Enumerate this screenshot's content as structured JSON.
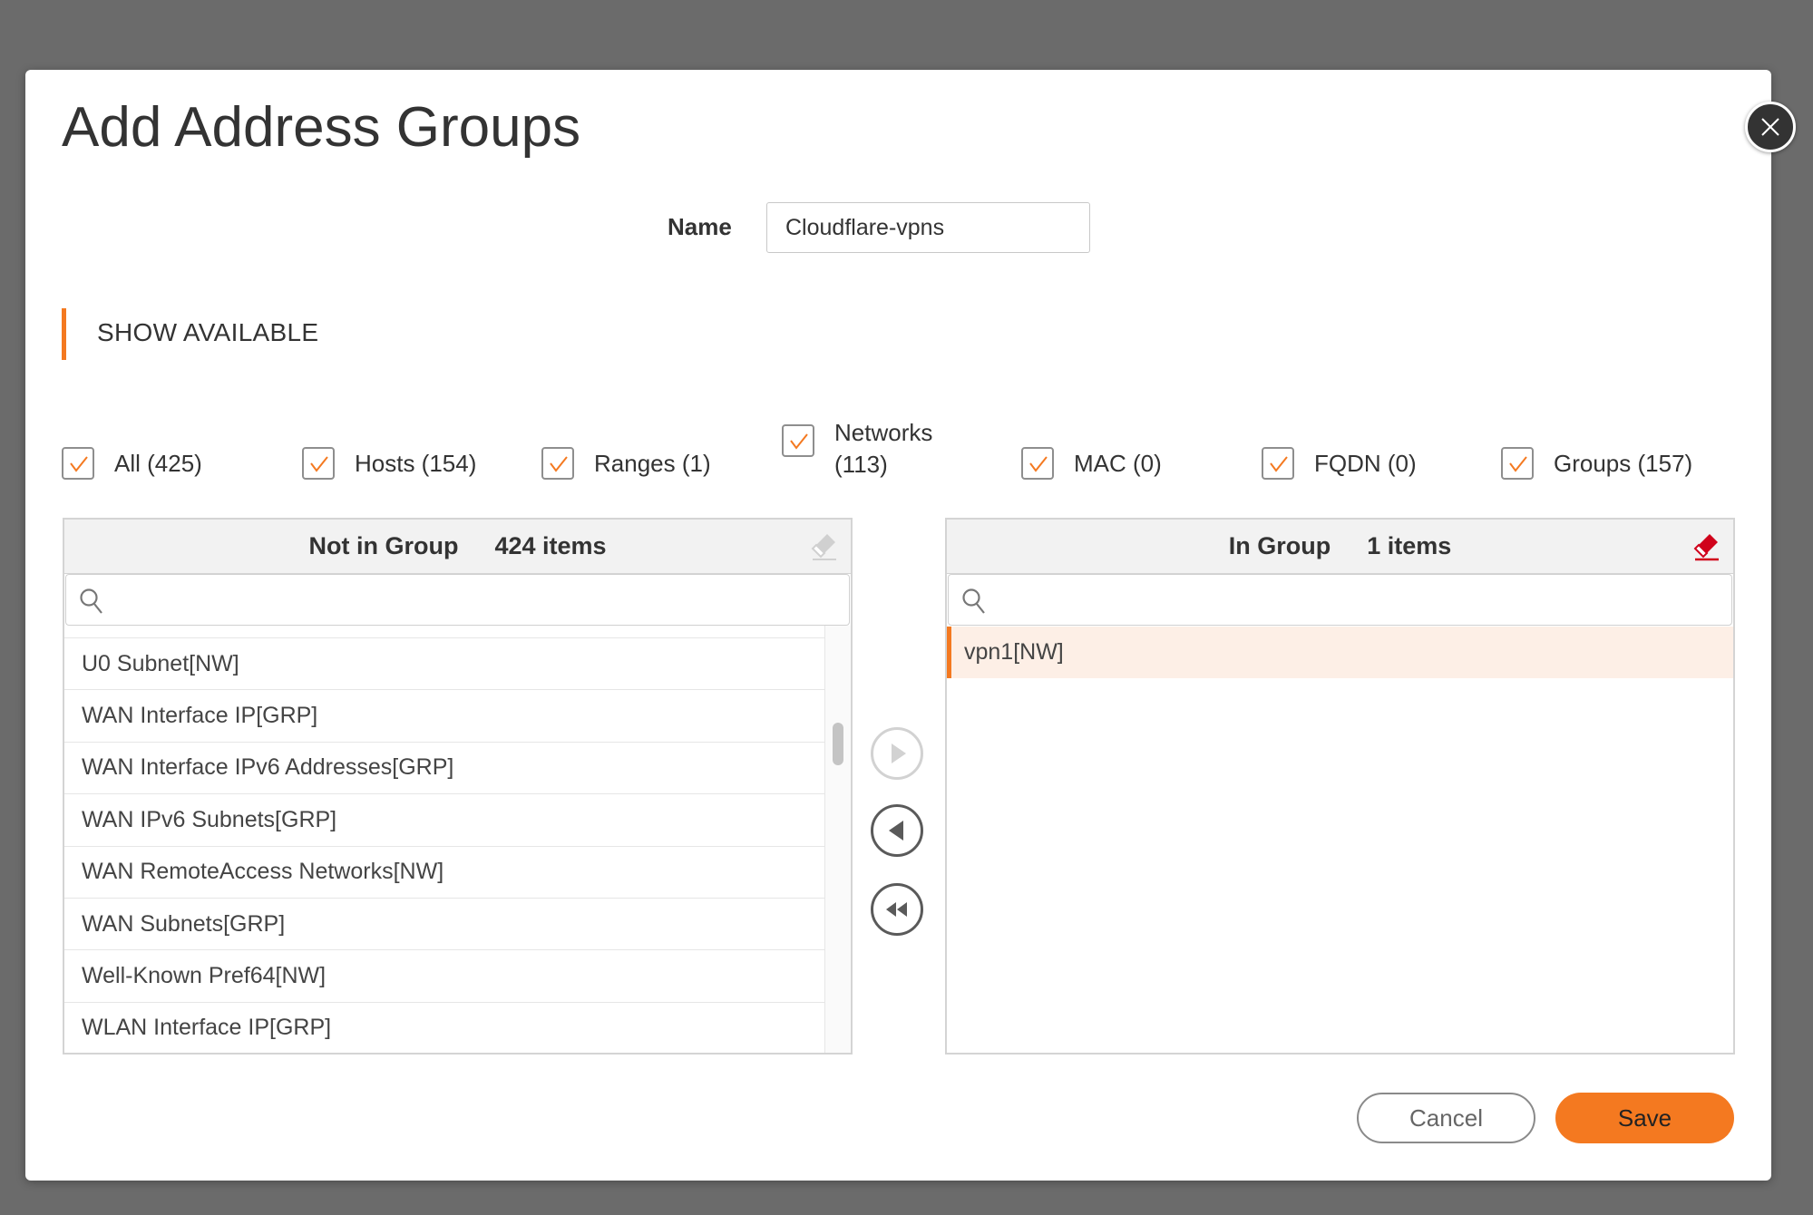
{
  "dialog": {
    "title": "Add Address Groups",
    "close_icon": "close-icon",
    "name_label": "Name",
    "name_value": "Cloudflare-vpns",
    "section_label": "SHOW AVAILABLE",
    "accent_color": "#f47920"
  },
  "filters": [
    {
      "label": "All (425)",
      "checked": true
    },
    {
      "label": "Hosts (154)",
      "checked": true
    },
    {
      "label": "Ranges (1)",
      "checked": true
    },
    {
      "label": "Networks (113)",
      "checked": true
    },
    {
      "label": "MAC (0)",
      "checked": true
    },
    {
      "label": "FQDN (0)",
      "checked": true
    },
    {
      "label": "Groups (157)",
      "checked": true
    }
  ],
  "left_panel": {
    "title": "Not in Group",
    "count": "424 items",
    "search_placeholder": "",
    "items": [
      "U0 Subnet[NW]",
      "WAN Interface IP[GRP]",
      "WAN Interface IPv6 Addresses[GRP]",
      "WAN IPv6 Subnets[GRP]",
      "WAN RemoteAccess Networks[NW]",
      "WAN Subnets[GRP]",
      "Well-Known Pref64[NW]",
      "WLAN Interface IP[GRP]"
    ]
  },
  "right_panel": {
    "title": "In Group",
    "count": "1 items",
    "search_placeholder": "",
    "items": [
      "vpn1[NW]"
    ],
    "selected_index": 0
  },
  "buttons": {
    "cancel": "Cancel",
    "save": "Save"
  }
}
